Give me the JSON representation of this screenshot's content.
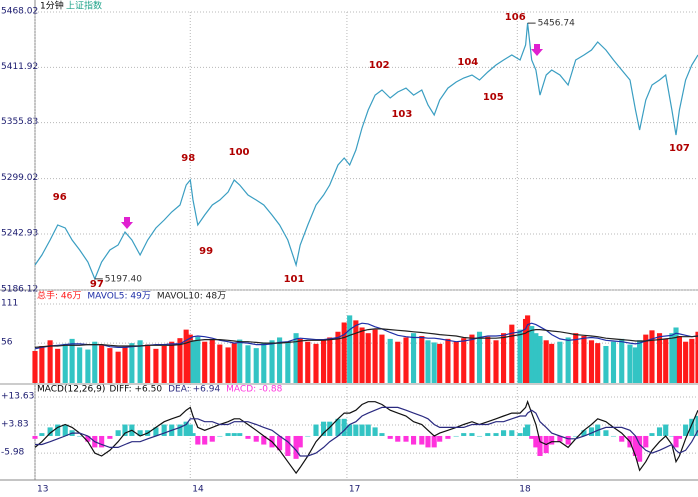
{
  "header": {
    "period": "1分钟",
    "index": "上证指数"
  },
  "chart_data": [
    {
      "type": "line",
      "x": [
        0,
        10,
        22,
        33,
        44,
        54,
        65,
        77,
        87,
        97,
        109,
        121,
        131,
        141,
        153,
        164,
        176,
        188,
        199,
        211,
        220,
        226,
        230,
        237,
        247,
        258,
        269,
        281,
        290,
        298,
        310,
        322,
        333,
        345,
        356,
        368,
        380,
        386,
        397,
        409,
        420,
        429,
        441,
        450,
        458,
        467,
        476,
        485,
        495,
        505,
        517,
        528,
        540,
        551,
        563,
        572,
        581,
        589,
        601,
        613,
        624,
        636,
        647,
        659,
        671,
        682,
        694,
        706,
        714,
        717,
        723,
        729,
        735,
        744,
        752,
        764,
        776,
        787,
        799,
        810,
        819,
        831,
        842,
        854,
        866,
        874,
        880,
        889,
        898,
        909,
        918,
        927,
        933,
        938,
        947,
        956,
        965
      ],
      "series": [
        {
          "color": "#3a9ec2",
          "values": [
            5211.5,
            5221.6,
            5236.8,
            5252.0,
            5249.0,
            5236.8,
            5226.7,
            5214.5,
            5197.4,
            5214.5,
            5226.7,
            5231.8,
            5244.9,
            5236.8,
            5221.6,
            5236.8,
            5249.0,
            5257.1,
            5265.2,
            5272.3,
            5292.6,
            5297.7,
            5277.4,
            5252.0,
            5262.2,
            5272.3,
            5277.4,
            5285.5,
            5297.7,
            5292.6,
            5282.5,
            5277.4,
            5272.3,
            5262.2,
            5252.0,
            5236.8,
            5211.5,
            5231.8,
            5252.0,
            5272.3,
            5282.5,
            5292.6,
            5312.9,
            5320.0,
            5312.9,
            5328.1,
            5350.4,
            5368.6,
            5383.8,
            5388.9,
            5380.8,
            5386.9,
            5390.9,
            5383.8,
            5388.9,
            5373.7,
            5363.6,
            5378.8,
            5390.9,
            5397.0,
            5401.1,
            5404.1,
            5399.1,
            5407.2,
            5414.3,
            5419.3,
            5424.4,
            5419.3,
            5434.6,
            5456.74,
            5419.3,
            5409.2,
            5383.8,
            5404.1,
            5409.2,
            5404.1,
            5394.0,
            5419.3,
            5424.4,
            5429.5,
            5437.6,
            5429.5,
            5419.3,
            5409.2,
            5399.1,
            5368.6,
            5348.4,
            5378.8,
            5394.0,
            5399.1,
            5404.1,
            5368.6,
            5343.3,
            5368.6,
            5399.1,
            5414.3,
            5424.4
          ]
        }
      ],
      "xlim": [
        0,
        965
      ],
      "xticks": [
        {
          "value": 0,
          "label": "13"
        },
        {
          "value": 226,
          "label": "14"
        },
        {
          "value": 454,
          "label": "17"
        },
        {
          "value": 702,
          "label": "18"
        }
      ],
      "ylim": [
        5186.12,
        5468.02
      ],
      "yticks": [
        5468.02,
        5411.92,
        5355.83,
        5299.02,
        5242.93,
        5186.12
      ],
      "grid": true,
      "annotations": [
        {
          "text": "96",
          "x": 36,
          "y": 5280.4
        },
        {
          "text": "97",
          "x": 90,
          "y": 5192.2
        },
        {
          "text": "98",
          "x": 223,
          "y": 5320
        },
        {
          "text": "99",
          "x": 249,
          "y": 5225.7
        },
        {
          "text": "100",
          "x": 297,
          "y": 5326
        },
        {
          "text": "101",
          "x": 377,
          "y": 5197.3
        },
        {
          "text": "102",
          "x": 501,
          "y": 5414.3
        },
        {
          "text": "103",
          "x": 534,
          "y": 5364.6
        },
        {
          "text": "104",
          "x": 630,
          "y": 5417.3
        },
        {
          "text": "105",
          "x": 667,
          "y": 5381.8
        },
        {
          "text": "106",
          "x": 699,
          "y": 5462.9
        },
        {
          "text": "107",
          "x": 938,
          "y": 5330.1
        }
      ],
      "callouts": [
        {
          "x": 87,
          "value": 5197.4,
          "label": "5197.40"
        },
        {
          "x": 717,
          "value": 5456.74
        }
      ]
    },
    {
      "type": "bar",
      "x": [
        0,
        10,
        22,
        33,
        44,
        54,
        65,
        77,
        87,
        97,
        109,
        121,
        131,
        141,
        153,
        164,
        176,
        188,
        199,
        211,
        220,
        226,
        230,
        237,
        247,
        258,
        269,
        281,
        290,
        298,
        310,
        322,
        333,
        345,
        356,
        368,
        380,
        386,
        397,
        409,
        420,
        429,
        441,
        450,
        458,
        467,
        476,
        485,
        495,
        505,
        517,
        528,
        540,
        551,
        563,
        572,
        581,
        589,
        601,
        613,
        624,
        636,
        647,
        659,
        671,
        682,
        694,
        706,
        714,
        717,
        723,
        729,
        735,
        744,
        752,
        764,
        776,
        787,
        799,
        810,
        819,
        831,
        842,
        854,
        866,
        874,
        880,
        889,
        898,
        909,
        918,
        927,
        933,
        938,
        947,
        956,
        965
      ],
      "xlim": [
        0,
        965
      ],
      "ylim": [
        0,
        111
      ],
      "yticks": [
        111,
        56
      ],
      "series": [
        {
          "name": "总手: 46万",
          "type": "bar",
          "color": "#ff1a1a",
          "down_color": "#33c4c4",
          "values": [
            45,
            52,
            60,
            48,
            55,
            62,
            50,
            47,
            58,
            53,
            49,
            44,
            51,
            56,
            60,
            54,
            48,
            52,
            58,
            63,
            75,
            68,
            60,
            65,
            58,
            62,
            54,
            50,
            56,
            61,
            53,
            49,
            57,
            60,
            64,
            58,
            70,
            62,
            58,
            55,
            60,
            64,
            72,
            85,
            95,
            88,
            78,
            70,
            75,
            68,
            62,
            58,
            64,
            70,
            66,
            60,
            57,
            55,
            62,
            58,
            63,
            68,
            72,
            65,
            60,
            70,
            82,
            75,
            90,
            95,
            80,
            70,
            66,
            60,
            55,
            58,
            64,
            70,
            66,
            60,
            56,
            52,
            58,
            62,
            54,
            50,
            60,
            68,
            74,
            70,
            62,
            70,
            78,
            66,
            58,
            62,
            72
          ]
        },
        {
          "name": "MAVOL5: 49万",
          "type": "line",
          "color": "#1f2fa8",
          "values": [
            48,
            50,
            52,
            53,
            54,
            55,
            55,
            54,
            54,
            54,
            51,
            50,
            50,
            51,
            52,
            53,
            54,
            54,
            55,
            55,
            60,
            63,
            65,
            66,
            65,
            63,
            60,
            58,
            56,
            57,
            56,
            54,
            54,
            55,
            57,
            58,
            62,
            63,
            62,
            61,
            61,
            62,
            64,
            68,
            75,
            81,
            84,
            83,
            79,
            76,
            71,
            67,
            65,
            64,
            64,
            63,
            63,
            62,
            60,
            58,
            59,
            61,
            64,
            66,
            66,
            67,
            70,
            72,
            76,
            82,
            84,
            82,
            79,
            74,
            68,
            62,
            60,
            61,
            63,
            64,
            63,
            60,
            59,
            58,
            56,
            55,
            56,
            59,
            62,
            65,
            66,
            67,
            70,
            69,
            67,
            65,
            66
          ]
        },
        {
          "name": "MAVOL10: 48万",
          "type": "line",
          "color": "#222222",
          "values": [
            50,
            51,
            52,
            52,
            53,
            53,
            53,
            54,
            54,
            54,
            53,
            52,
            52,
            52,
            52,
            53,
            53,
            53,
            53,
            54,
            56,
            58,
            59,
            60,
            61,
            61,
            61,
            60,
            59,
            58,
            58,
            57,
            56,
            56,
            56,
            57,
            58,
            59,
            60,
            60,
            60,
            61,
            62,
            64,
            67,
            70,
            73,
            75,
            76,
            76,
            75,
            74,
            73,
            72,
            71,
            70,
            69,
            68,
            67,
            66,
            64,
            63,
            63,
            63,
            63,
            64,
            66,
            68,
            70,
            72,
            74,
            75,
            75,
            74,
            73,
            72,
            70,
            68,
            67,
            66,
            65,
            63,
            62,
            61,
            60,
            59,
            59,
            59,
            60,
            61,
            62,
            63,
            64,
            65,
            65,
            65,
            66
          ]
        }
      ]
    },
    {
      "type": "bar",
      "title": "MACD(12,26,9)",
      "x": [
        0,
        10,
        22,
        33,
        44,
        54,
        65,
        77,
        87,
        97,
        109,
        121,
        131,
        141,
        153,
        164,
        176,
        188,
        199,
        211,
        220,
        226,
        230,
        237,
        247,
        258,
        269,
        281,
        290,
        298,
        310,
        322,
        333,
        345,
        356,
        368,
        380,
        386,
        397,
        409,
        420,
        429,
        441,
        450,
        458,
        467,
        476,
        485,
        495,
        505,
        517,
        528,
        540,
        551,
        563,
        572,
        581,
        589,
        601,
        613,
        624,
        636,
        647,
        659,
        671,
        682,
        694,
        706,
        714,
        717,
        723,
        729,
        735,
        744,
        752,
        764,
        776,
        787,
        799,
        810,
        819,
        831,
        842,
        854,
        866,
        874,
        880,
        889,
        898,
        909,
        918,
        927,
        933,
        938,
        947,
        956,
        965
      ],
      "xlim": [
        0,
        965
      ],
      "ylim": [
        -14.7,
        13.63
      ],
      "yticks": [
        {
          "value": 13.63,
          "label": "+13.63"
        },
        {
          "value": 3.83,
          "label": "+3.83"
        },
        -5.98
      ],
      "series": [
        {
          "name": "DIFF: +6.50",
          "type": "line",
          "color": "#111111",
          "values": [
            -4,
            -2,
            1,
            3,
            4,
            3,
            1,
            -2,
            -6,
            -7,
            -5,
            -2,
            1,
            2,
            0,
            1,
            3,
            5,
            6,
            7,
            9,
            10,
            7,
            3,
            2,
            3,
            4,
            5,
            6,
            6,
            4,
            2,
            0,
            -2,
            -5,
            -9,
            -13,
            -11,
            -7,
            -2,
            1,
            3,
            6,
            8,
            8,
            9,
            11,
            12,
            12,
            11,
            9,
            8,
            7,
            5,
            4,
            2,
            0,
            1,
            2,
            3,
            4,
            5,
            4,
            5,
            6,
            7,
            8,
            8,
            10,
            12,
            8,
            4,
            -2,
            -3,
            -2,
            -2,
            -4,
            -1,
            2,
            4,
            6,
            5,
            3,
            1,
            -2,
            -7,
            -12,
            -9,
            -5,
            -2,
            0,
            -3,
            -9,
            -7,
            -1,
            4,
            9
          ]
        },
        {
          "name": "DEA: +6.94",
          "type": "line",
          "color": "#2a2a80",
          "values": [
            -3,
            -3,
            -2,
            -1,
            0,
            1,
            1,
            0,
            -2,
            -3,
            -4,
            -4,
            -3,
            -2,
            -2,
            -1,
            0,
            1,
            2,
            3,
            4,
            6,
            6,
            6,
            5,
            5,
            4,
            4,
            5,
            5,
            5,
            4,
            3,
            2,
            0,
            -2,
            -5,
            -7,
            -7,
            -6,
            -4,
            -2,
            0,
            2,
            4,
            5,
            7,
            8,
            9,
            10,
            10,
            10,
            9,
            8,
            7,
            6,
            4,
            3,
            3,
            3,
            3,
            4,
            4,
            4,
            5,
            5,
            6,
            7,
            7,
            8,
            9,
            8,
            5,
            3,
            1,
            0,
            -1,
            -1,
            0,
            1,
            2,
            3,
            3,
            3,
            2,
            0,
            -3,
            -5,
            -6,
            -5,
            -4,
            -3,
            -5,
            -6,
            -5,
            -2,
            2
          ]
        },
        {
          "name": "MACD: -0.88",
          "type": "bar",
          "color": "#33c4c4",
          "neg_color": "#ff33dd",
          "values": [
            -1,
            1,
            3,
            4,
            4,
            2,
            0,
            -2,
            -4,
            -4,
            -1,
            2,
            4,
            4,
            2,
            2,
            3,
            4,
            4,
            4,
            5,
            4,
            1,
            -3,
            -3,
            -2,
            0,
            1,
            1,
            1,
            -1,
            -2,
            -3,
            -4,
            -5,
            -7,
            -8,
            -4,
            0,
            4,
            5,
            5,
            6,
            6,
            4,
            4,
            4,
            4,
            3,
            1,
            -1,
            -2,
            -2,
            -3,
            -3,
            -4,
            -4,
            -2,
            -1,
            0,
            1,
            1,
            0,
            1,
            1,
            2,
            2,
            1,
            3,
            4,
            -1,
            -4,
            -7,
            -6,
            -3,
            -2,
            -3,
            0,
            2,
            3,
            4,
            2,
            0,
            -2,
            -4,
            -7,
            -9,
            -4,
            1,
            3,
            4,
            0,
            -4,
            -1,
            4,
            6,
            7
          ]
        }
      ]
    }
  ]
}
